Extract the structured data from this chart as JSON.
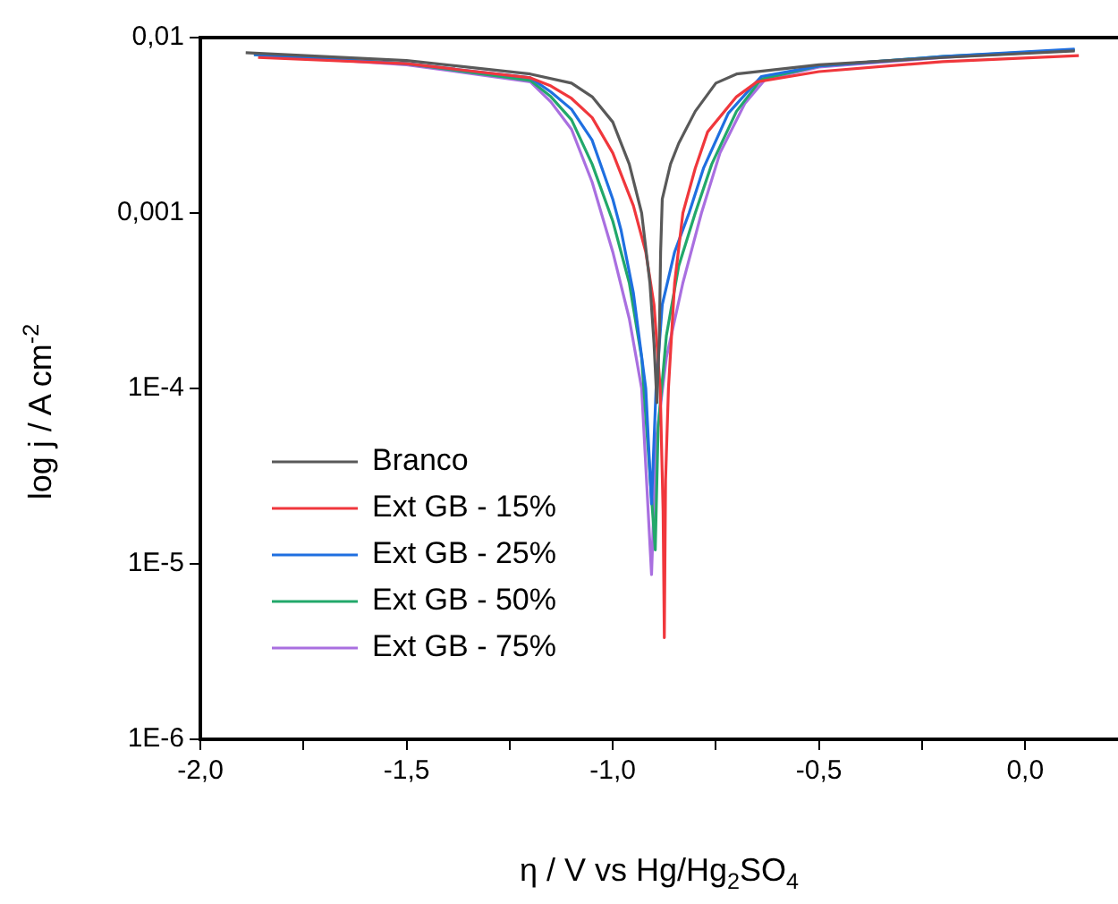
{
  "chart_data": {
    "type": "line",
    "xlabel": "η / V vs Hg/Hg$_{2}$SO$_{4}$",
    "ylabel": "log j / A cm$^{-2}$",
    "log": "y",
    "grid": false,
    "legend": "bottom left",
    "marker": "none",
    "line_style": "solid",
    "xlim": [
      -2.0,
      0.225
    ],
    "xticks": [
      {
        "value": -2.0,
        "label": "-2,0"
      },
      {
        "value": -1.75,
        "label": null
      },
      {
        "value": -1.5,
        "label": "-1,5"
      },
      {
        "value": -1.25,
        "label": null
      },
      {
        "value": -1.0,
        "label": "-1,0"
      },
      {
        "value": -0.75,
        "label": null
      },
      {
        "value": -0.5,
        "label": "-0,5"
      },
      {
        "value": -0.25,
        "label": null
      },
      {
        "value": 0.0,
        "label": "0,0"
      }
    ],
    "ylim": [
      1e-06,
      0.01
    ],
    "yticks": [
      {
        "value": 1e-06,
        "label": "1E-6"
      },
      {
        "value": 1e-05,
        "label": "1E-5"
      },
      {
        "value": 0.0001,
        "label": "1E-4"
      },
      {
        "value": 0.001,
        "label": "0,001"
      },
      {
        "value": 0.01,
        "label": "0,01"
      }
    ],
    "series": [
      {
        "name": "Branco",
        "color": "#595959",
        "x": [
          -1.89,
          -1.5,
          -1.2,
          -1.1,
          -1.05,
          -1.0,
          -0.96,
          -0.93,
          -0.91,
          -0.9,
          -0.893,
          -0.887,
          -0.884,
          -0.88,
          -0.86,
          -0.84,
          -0.8,
          -0.75,
          -0.7,
          -0.5,
          -0.2,
          0.12
        ],
        "values": [
          0.0082,
          0.0074,
          0.0062,
          0.0055,
          0.0046,
          0.0033,
          0.0019,
          0.001,
          0.0004,
          0.00018,
          8.3e-05,
          0.0002,
          0.0006,
          0.0012,
          0.0019,
          0.0025,
          0.0038,
          0.0055,
          0.0062,
          0.007,
          0.0077,
          0.0084
        ]
      },
      {
        "name": "Ext GB - 15%",
        "color": "#f0373c",
        "x": [
          -1.86,
          -1.5,
          -1.2,
          -1.15,
          -1.1,
          -1.05,
          -1.0,
          -0.95,
          -0.92,
          -0.9,
          -0.885,
          -0.878,
          -0.875,
          -0.872,
          -0.865,
          -0.85,
          -0.83,
          -0.8,
          -0.77,
          -0.7,
          -0.65,
          -0.5,
          -0.2,
          0.13
        ],
        "values": [
          0.0077,
          0.0071,
          0.0059,
          0.0053,
          0.0045,
          0.0035,
          0.0022,
          0.0011,
          0.0006,
          0.0003,
          0.0001,
          2e-05,
          3.8e-06,
          3e-05,
          0.0001,
          0.0004,
          0.001,
          0.0018,
          0.0029,
          0.0046,
          0.0056,
          0.0064,
          0.0073,
          0.0079
        ]
      },
      {
        "name": "Ext GB - 25%",
        "color": "#1f6fe0",
        "x": [
          -1.87,
          -1.5,
          -1.2,
          -1.15,
          -1.1,
          -1.05,
          -1.0,
          -0.98,
          -0.95,
          -0.92,
          -0.906,
          -0.895,
          -0.88,
          -0.85,
          -0.815,
          -0.78,
          -0.72,
          -0.64,
          -0.5,
          -0.2,
          0.12
        ],
        "values": [
          0.008,
          0.0071,
          0.0059,
          0.0049,
          0.0039,
          0.0026,
          0.0012,
          0.0008,
          0.00035,
          0.0001,
          2.2e-05,
          0.0001,
          0.0003,
          0.0006,
          0.001,
          0.0018,
          0.0037,
          0.006,
          0.0069,
          0.0078,
          0.0086
        ]
      },
      {
        "name": "Ext GB - 50%",
        "color": "#22a86a",
        "x": [
          -1.87,
          -1.5,
          -1.2,
          -1.15,
          -1.1,
          -1.05,
          -1.0,
          -0.96,
          -0.93,
          -0.897,
          -0.89,
          -0.87,
          -0.84,
          -0.8,
          -0.76,
          -0.7,
          -0.64,
          -0.5,
          -0.2,
          0.12
        ],
        "values": [
          0.008,
          0.0071,
          0.0057,
          0.0046,
          0.0034,
          0.0019,
          0.0009,
          0.0004,
          0.00015,
          1.2e-05,
          6e-05,
          0.0002,
          0.0005,
          0.001,
          0.0019,
          0.0038,
          0.0058,
          0.0069,
          0.0078,
          0.0085
        ]
      },
      {
        "name": "Ext GB - 75%",
        "color": "#a96fe0",
        "x": [
          -1.87,
          -1.5,
          -1.2,
          -1.15,
          -1.1,
          -1.05,
          -1.0,
          -0.96,
          -0.93,
          -0.906,
          -0.895,
          -0.87,
          -0.83,
          -0.785,
          -0.74,
          -0.68,
          -0.63,
          -0.5,
          -0.2,
          0.12
        ],
        "values": [
          0.008,
          0.007,
          0.0056,
          0.0043,
          0.003,
          0.0015,
          0.0006,
          0.00025,
          0.0001,
          8.7e-06,
          5e-05,
          0.00015,
          0.0004,
          0.001,
          0.0022,
          0.0042,
          0.0058,
          0.0068,
          0.0077,
          0.0085
        ]
      }
    ]
  }
}
